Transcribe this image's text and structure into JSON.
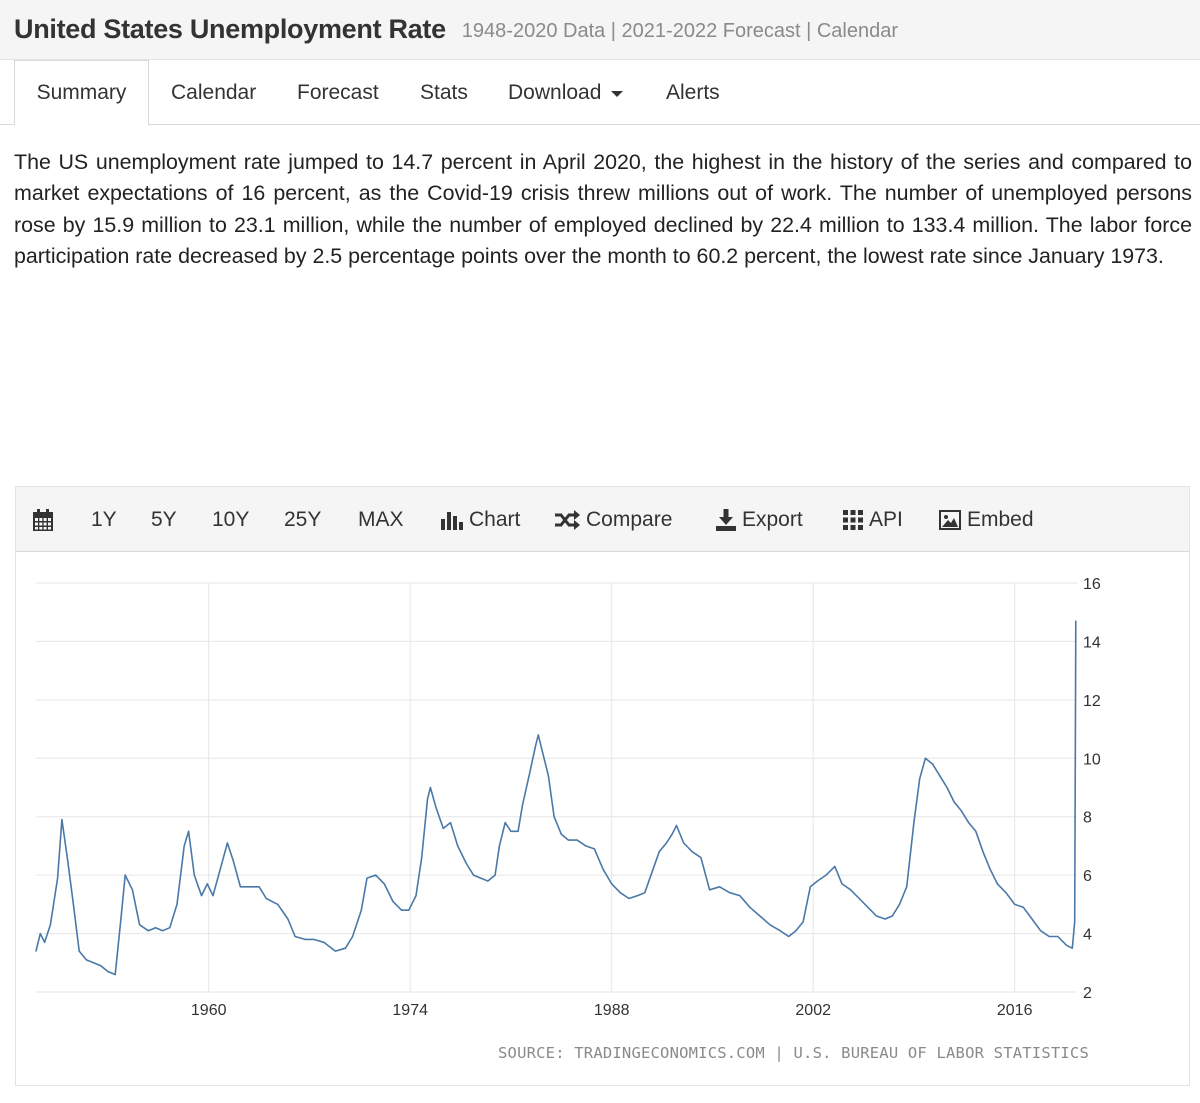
{
  "header": {
    "title": "United States Unemployment Rate",
    "subtitle": "1948-2020 Data | 2021-2022 Forecast | Calendar"
  },
  "tabs": [
    "Summary",
    "Calendar",
    "Forecast",
    "Stats",
    "Download",
    "Alerts"
  ],
  "active_tab": "Summary",
  "summary_text": "The US unemployment rate jumped to 14.7 percent in April 2020, the highest in the history of the series and compared to market expectations of 16 percent, as the Covid-19 crisis threw millions out of work. The number of unemployed persons rose by 15.9 million to 23.1 million, while the number of employed declined by 22.4 million to 133.4 million. The labor force participation rate decreased by 2.5 percentage points over the month to 60.2 percent, the lowest rate since January 1973.",
  "toolbar": {
    "calendar_icon": "calendar-icon",
    "ranges": [
      "1Y",
      "5Y",
      "10Y",
      "25Y",
      "MAX"
    ],
    "chart": "Chart",
    "compare": "Compare",
    "export": "Export",
    "api": "API",
    "embed": "Embed"
  },
  "colors": {
    "line": "#4a79a8",
    "grid": "#e6e6e6",
    "header_bg": "#f5f5f5"
  },
  "source": "SOURCE: TRADINGECONOMICS.COM | U.S. BUREAU OF LABOR STATISTICS",
  "chart_data": {
    "type": "line",
    "title": "",
    "xlabel": "",
    "ylabel": "",
    "xlim": [
      1948,
      2020.33
    ],
    "ylim": [
      2,
      16
    ],
    "x_ticks": [
      1960,
      1974,
      1988,
      2002,
      2016
    ],
    "y_ticks": [
      2,
      4,
      6,
      8,
      10,
      12,
      14,
      16
    ],
    "grid": true,
    "series": [
      {
        "name": "Unemployment Rate",
        "x": [
          1948.0,
          1948.3,
          1948.6,
          1949.0,
          1949.5,
          1949.8,
          1950.2,
          1950.6,
          1951.0,
          1951.5,
          1952.0,
          1952.5,
          1953.0,
          1953.5,
          1953.9,
          1954.2,
          1954.7,
          1955.2,
          1955.8,
          1956.3,
          1956.8,
          1957.3,
          1957.8,
          1958.3,
          1958.6,
          1959.0,
          1959.5,
          1959.9,
          1960.3,
          1960.8,
          1961.3,
          1961.7,
          1962.2,
          1962.8,
          1963.5,
          1964.0,
          1964.8,
          1965.5,
          1966.0,
          1966.7,
          1967.3,
          1968.0,
          1968.8,
          1969.5,
          1970.0,
          1970.6,
          1971.0,
          1971.6,
          1972.2,
          1972.8,
          1973.4,
          1973.9,
          1974.4,
          1974.8,
          1975.2,
          1975.4,
          1975.8,
          1976.3,
          1976.8,
          1977.3,
          1977.9,
          1978.4,
          1978.9,
          1979.4,
          1979.9,
          1980.2,
          1980.6,
          1981.0,
          1981.5,
          1981.8,
          1982.3,
          1982.7,
          1982.9,
          1983.2,
          1983.6,
          1984.0,
          1984.5,
          1985.0,
          1985.6,
          1986.2,
          1986.8,
          1987.4,
          1988.0,
          1988.6,
          1989.2,
          1989.8,
          1990.3,
          1990.8,
          1991.3,
          1991.8,
          1992.2,
          1992.5,
          1993.0,
          1993.6,
          1994.2,
          1994.8,
          1995.5,
          1996.2,
          1996.9,
          1997.6,
          1998.3,
          1999.0,
          1999.7,
          2000.3,
          2000.8,
          2001.3,
          2001.8,
          2002.3,
          2002.9,
          2003.5,
          2004.0,
          2004.6,
          2005.2,
          2005.8,
          2006.4,
          2007.0,
          2007.5,
          2008.0,
          2008.5,
          2009.0,
          2009.4,
          2009.8,
          2010.3,
          2010.8,
          2011.3,
          2011.8,
          2012.3,
          2012.8,
          2013.3,
          2013.8,
          2014.3,
          2014.8,
          2015.4,
          2016.0,
          2016.6,
          2017.2,
          2017.8,
          2018.4,
          2019.0,
          2019.6,
          2020.0,
          2020.17,
          2020.25
        ],
        "values": [
          3.4,
          4.0,
          3.7,
          4.3,
          5.9,
          7.9,
          6.5,
          5.0,
          3.4,
          3.1,
          3.0,
          2.9,
          2.7,
          2.6,
          4.5,
          6.0,
          5.5,
          4.3,
          4.1,
          4.2,
          4.1,
          4.2,
          5.0,
          7.0,
          7.5,
          6.0,
          5.3,
          5.7,
          5.3,
          6.2,
          7.1,
          6.5,
          5.6,
          5.6,
          5.6,
          5.2,
          5.0,
          4.5,
          3.9,
          3.8,
          3.8,
          3.7,
          3.4,
          3.5,
          3.9,
          4.8,
          5.9,
          6.0,
          5.7,
          5.1,
          4.8,
          4.8,
          5.3,
          6.6,
          8.6,
          9.0,
          8.3,
          7.6,
          7.8,
          7.0,
          6.4,
          6.0,
          5.9,
          5.8,
          6.0,
          7.0,
          7.8,
          7.5,
          7.5,
          8.4,
          9.5,
          10.4,
          10.8,
          10.2,
          9.4,
          8.0,
          7.4,
          7.2,
          7.2,
          7.0,
          6.9,
          6.2,
          5.7,
          5.4,
          5.2,
          5.3,
          5.4,
          6.1,
          6.8,
          7.1,
          7.4,
          7.7,
          7.1,
          6.8,
          6.6,
          5.5,
          5.6,
          5.4,
          5.3,
          4.9,
          4.6,
          4.3,
          4.1,
          3.9,
          4.1,
          4.4,
          5.6,
          5.8,
          6.0,
          6.3,
          5.7,
          5.5,
          5.2,
          4.9,
          4.6,
          4.5,
          4.6,
          5.0,
          5.6,
          7.8,
          9.3,
          10.0,
          9.8,
          9.4,
          9.0,
          8.5,
          8.2,
          7.8,
          7.5,
          6.8,
          6.2,
          5.7,
          5.4,
          5.0,
          4.9,
          4.5,
          4.1,
          3.9,
          3.9,
          3.6,
          3.5,
          4.4,
          14.7
        ]
      }
    ]
  }
}
